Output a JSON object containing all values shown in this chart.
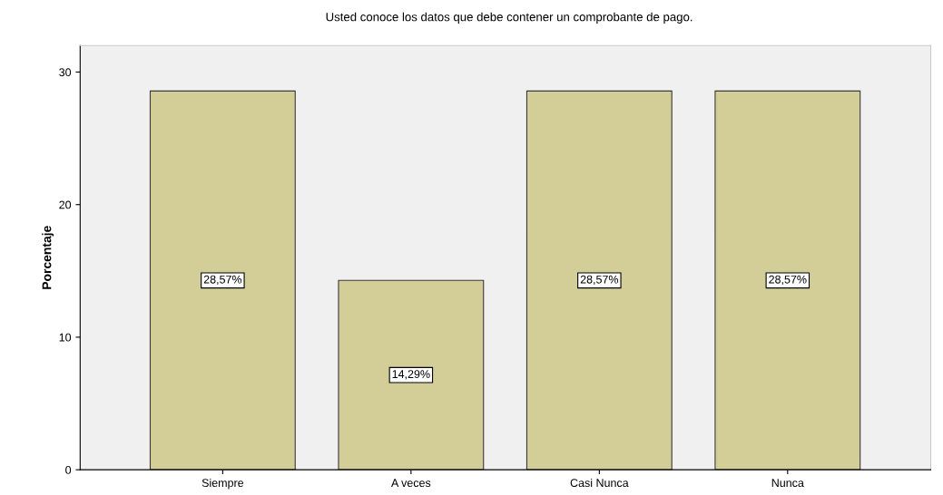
{
  "chart_data": {
    "type": "bar",
    "title": "Usted conoce los datos que debe contener un comprobante de pago.",
    "ylabel": "Porcentaje",
    "categories": [
      "Siempre",
      "A veces",
      "Casi Nunca",
      "Nunca"
    ],
    "values": [
      28.57,
      14.29,
      28.57,
      28.57
    ],
    "value_labels": [
      "28,57%",
      "14,29%",
      "28,57%",
      "28,57%"
    ],
    "color": "#d3ce97",
    "ylim": [
      0,
      32
    ],
    "yticks": [
      0,
      10,
      20,
      30
    ],
    "grid": false
  }
}
